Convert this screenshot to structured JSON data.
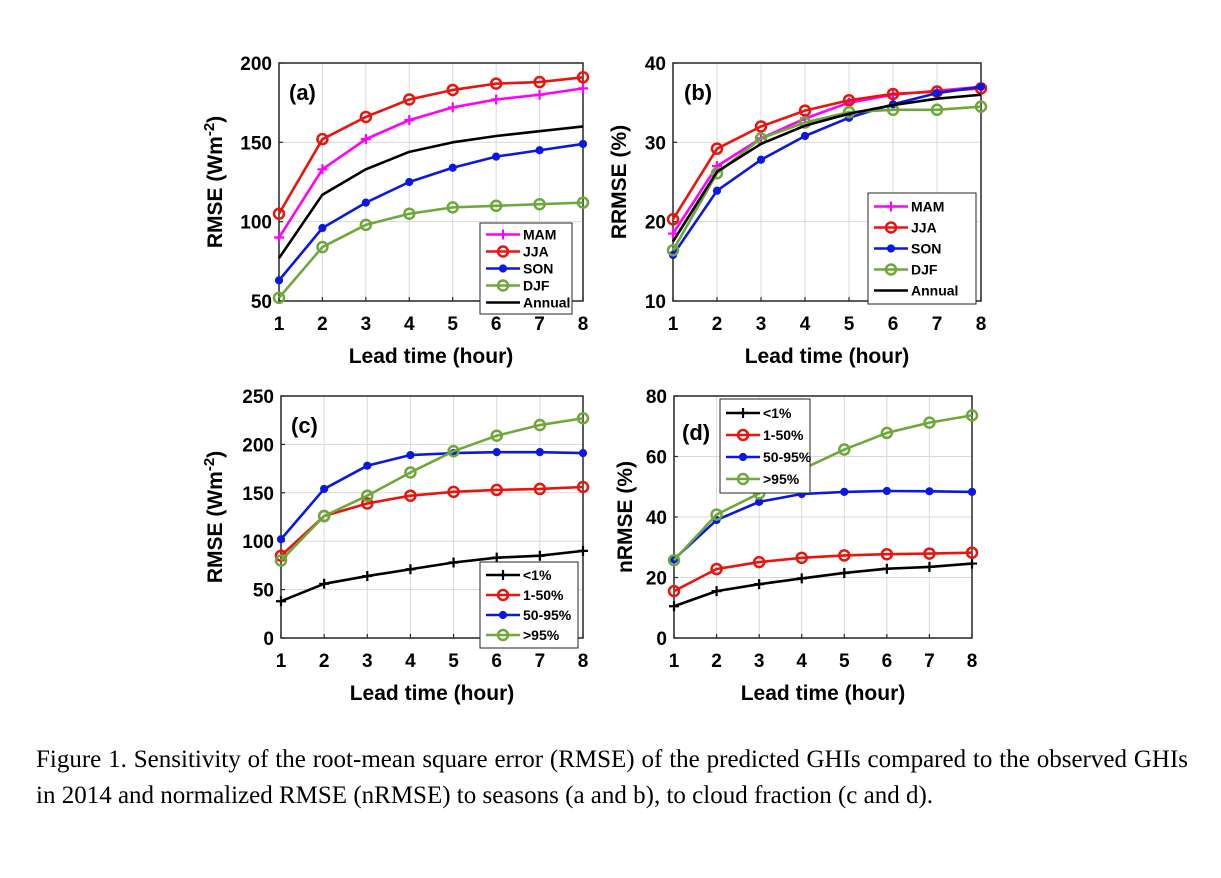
{
  "caption": "Figure 1. Sensitivity of the root-mean square error (RMSE) of the predicted GHIs compared to the observed GHIs in 2014 and normalized RMSE (nRMSE) to seasons (a and b), to cloud fraction (c and d).",
  "colors": {
    "magenta": "#ff00ff",
    "red": "#e8150e",
    "blue": "#0b19e0",
    "green": "#6fa83a",
    "black": "#000000"
  },
  "chart_data": [
    {
      "type": "line",
      "panel_label": "(a)",
      "xlabel": "Lead time (hour)",
      "ylabel": "RMSE (Wm-2)",
      "ylabel_main": "RMSE (Wm",
      "ylabel_sup": "-2",
      "ylabel_close": ")",
      "x": [
        1,
        2,
        3,
        4,
        5,
        6,
        7,
        8
      ],
      "xlim": [
        1,
        8
      ],
      "ylim": [
        50,
        200
      ],
      "yticks": [
        50,
        100,
        150,
        200
      ],
      "grid": true,
      "legend_position": "bottom-right",
      "series": [
        {
          "name": "MAM",
          "color": "#ff00ff",
          "marker": "plus",
          "values": [
            90,
            133,
            152,
            164,
            172,
            177,
            180,
            184
          ]
        },
        {
          "name": "JJA",
          "color": "#e8150e",
          "marker": "circle",
          "values": [
            105,
            152,
            166,
            177,
            183,
            187,
            188,
            191
          ]
        },
        {
          "name": "SON",
          "color": "#0b19e0",
          "marker": "dot",
          "values": [
            63,
            96,
            112,
            125,
            134,
            141,
            145,
            149
          ]
        },
        {
          "name": "DJF",
          "color": "#6fa83a",
          "marker": "circle",
          "values": [
            52,
            84,
            98,
            105,
            109,
            110,
            111,
            112
          ]
        },
        {
          "name": "Annual",
          "color": "#000000",
          "marker": "none",
          "values": [
            77,
            117,
            133,
            144,
            150,
            154,
            157,
            160
          ]
        }
      ]
    },
    {
      "type": "line",
      "panel_label": "(b)",
      "xlabel": "Lead time (hour)",
      "ylabel": "RRMSE (%)",
      "ylabel_main": "RRMSE (%)",
      "ylabel_sup": "",
      "ylabel_close": "",
      "x": [
        1,
        2,
        3,
        4,
        5,
        6,
        7,
        8
      ],
      "xlim": [
        1,
        8
      ],
      "ylim": [
        10,
        40
      ],
      "yticks": [
        10,
        20,
        30,
        40
      ],
      "grid": true,
      "legend_position": "bottom-right",
      "series": [
        {
          "name": "MAM",
          "color": "#ff00ff",
          "marker": "plus",
          "values": [
            18.5,
            27,
            30.5,
            33,
            35,
            36,
            36.5,
            37
          ]
        },
        {
          "name": "JJA",
          "color": "#e8150e",
          "marker": "circle",
          "values": [
            20.3,
            29.2,
            32,
            34,
            35.3,
            36.1,
            36.4,
            36.8
          ]
        },
        {
          "name": "SON",
          "color": "#0b19e0",
          "marker": "dot",
          "values": [
            15.8,
            23.9,
            27.8,
            30.8,
            33.1,
            34.8,
            36.2,
            37.0
          ]
        },
        {
          "name": "DJF",
          "color": "#6fa83a",
          "marker": "circle",
          "values": [
            16.4,
            26.1,
            30.5,
            32.5,
            33.8,
            34.1,
            34.1,
            34.5
          ]
        },
        {
          "name": "Annual",
          "color": "#000000",
          "marker": "none",
          "values": [
            17.5,
            26.3,
            29.8,
            32.1,
            33.6,
            34.7,
            35.5,
            36.0
          ]
        }
      ]
    },
    {
      "type": "line",
      "panel_label": "(c)",
      "xlabel": "Lead time (hour)",
      "ylabel": "RMSE (Wm-2)",
      "ylabel_main": "RMSE (Wm",
      "ylabel_sup": "-2",
      "ylabel_close": ")",
      "x": [
        1,
        2,
        3,
        4,
        5,
        6,
        7,
        8
      ],
      "xlim": [
        1,
        8
      ],
      "ylim": [
        0,
        250
      ],
      "yticks": [
        0,
        50,
        100,
        150,
        200,
        250
      ],
      "grid": true,
      "legend_position": "bottom-right",
      "series": [
        {
          "name": "<1%",
          "color": "#000000",
          "marker": "plus",
          "values": [
            38,
            56,
            64,
            71,
            78,
            83,
            85,
            90
          ]
        },
        {
          "name": "1-50%",
          "color": "#e8150e",
          "marker": "circle",
          "values": [
            85,
            126,
            139,
            147,
            151,
            153,
            154,
            156
          ]
        },
        {
          "name": "50-95%",
          "color": "#0b19e0",
          "marker": "dot",
          "values": [
            102,
            154,
            178,
            189,
            191,
            192,
            192,
            191
          ]
        },
        {
          "name": ">95%",
          "color": "#6fa83a",
          "marker": "circle",
          "values": [
            80,
            126,
            147,
            171,
            193,
            209,
            220,
            227
          ]
        }
      ]
    },
    {
      "type": "line",
      "panel_label": "(d)",
      "xlabel": "Lead time (hour)",
      "ylabel": "nRMSE (%)",
      "ylabel_main": "nRMSE (%)",
      "ylabel_sup": "",
      "ylabel_close": "",
      "x": [
        1,
        2,
        3,
        4,
        5,
        6,
        7,
        8
      ],
      "xlim": [
        1,
        8
      ],
      "ylim": [
        0,
        80
      ],
      "yticks": [
        0,
        20,
        40,
        60,
        80
      ],
      "grid": true,
      "legend_position": "top-left",
      "series": [
        {
          "name": "<1%",
          "color": "#000000",
          "marker": "plus",
          "values": [
            10.5,
            15.5,
            17.8,
            19.7,
            21.5,
            22.9,
            23.5,
            24.6
          ]
        },
        {
          "name": "1-50%",
          "color": "#e8150e",
          "marker": "circle",
          "values": [
            15.5,
            22.8,
            25.1,
            26.5,
            27.3,
            27.7,
            27.9,
            28.2
          ]
        },
        {
          "name": "50-95%",
          "color": "#0b19e0",
          "marker": "dot",
          "values": [
            26,
            39,
            45,
            47.6,
            48.3,
            48.6,
            48.5,
            48.3
          ]
        },
        {
          "name": ">95%",
          "color": "#6fa83a",
          "marker": "circle",
          "values": [
            25.7,
            40.8,
            47.8,
            55.7,
            62.3,
            67.8,
            71.2,
            73.6
          ]
        }
      ]
    }
  ]
}
